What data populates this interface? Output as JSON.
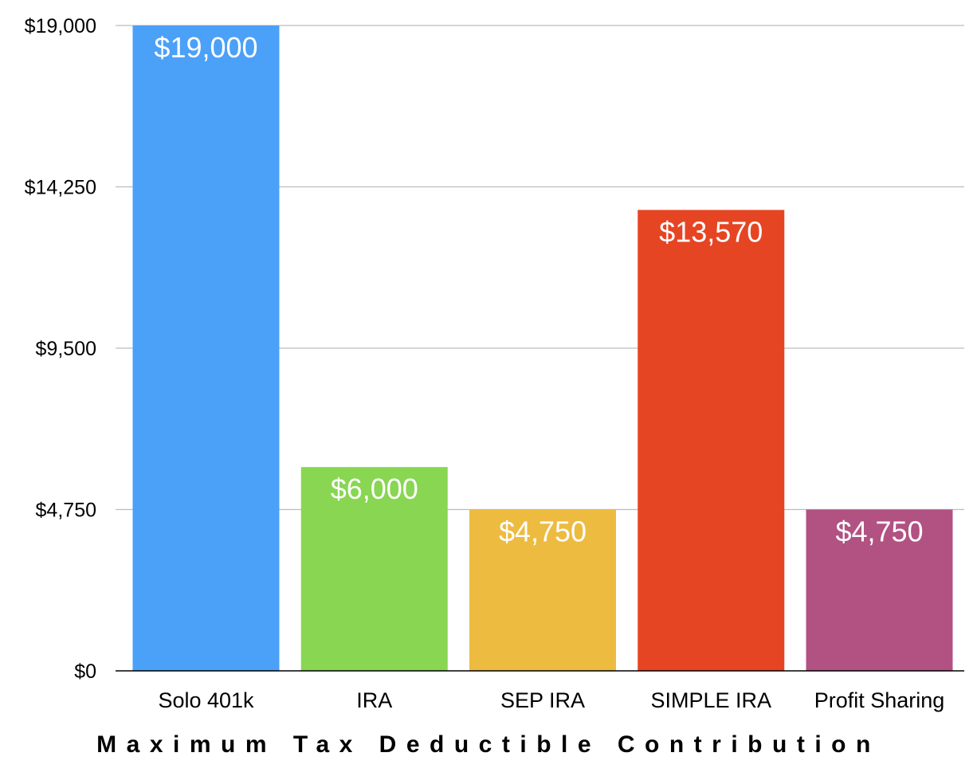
{
  "chart_data": {
    "type": "bar",
    "title": "",
    "xlabel": "Maximum Tax Deductible Contribution",
    "ylabel": "",
    "categories": [
      "Solo 401k",
      "IRA",
      "SEP IRA",
      "SIMPLE IRA",
      "Profit Sharing"
    ],
    "values": [
      19000,
      6000,
      4750,
      13570,
      4750
    ],
    "data_labels": [
      "$19,000",
      "$6,000",
      "$4,750",
      "$13,570",
      "$4,750"
    ],
    "bar_colors": [
      "#4BA0F8",
      "#88D652",
      "#EDBB40",
      "#E64523",
      "#B15282"
    ],
    "ylim": [
      0,
      19000
    ],
    "yticks": [
      0,
      4750,
      9500,
      14250,
      19000
    ],
    "ytick_labels": [
      "$0",
      "$4,750",
      "$9,500",
      "$14,250",
      "$19,000"
    ],
    "grid": true,
    "legend": "none"
  }
}
